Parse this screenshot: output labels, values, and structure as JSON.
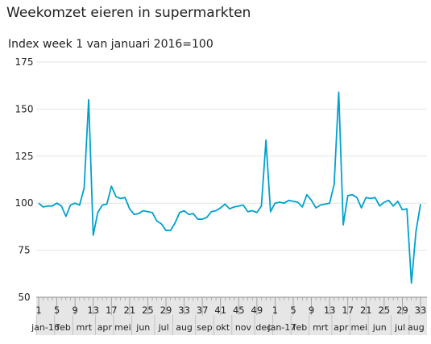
{
  "chart_data": {
    "type": "line",
    "title": "Weekomzet eieren in supermarkten",
    "subtitle": "Index week 1 van januari 2016=100",
    "ylim": [
      50,
      175
    ],
    "yticks": [
      "50",
      "75",
      "100",
      "125",
      "150",
      "175"
    ],
    "week_ticks": [
      "1",
      "5",
      "9",
      "13",
      "17",
      "21",
      "25",
      "29",
      "33",
      "37",
      "41",
      "45",
      "49",
      "1",
      "5",
      "9",
      "13",
      "17",
      "21",
      "25",
      "29",
      "33"
    ],
    "month_labels": [
      "jan-16",
      "feb",
      "mrt",
      "apr",
      "mei",
      "jun",
      "jul",
      "aug",
      "sep",
      "okt",
      "nov",
      "dec",
      "jan-17",
      "feb",
      "mrt",
      "apr",
      "mei",
      "jun",
      "jul",
      "aug"
    ],
    "grid": true,
    "series": [
      {
        "color": "#00a1cd",
        "values": [
          100,
          98,
          98.5,
          98.5,
          100,
          98.5,
          93,
          99,
          100,
          99,
          108,
          155,
          83,
          95,
          99,
          99.5,
          109,
          103.5,
          102.5,
          103,
          97,
          94,
          94.5,
          96,
          95.5,
          95,
          90.5,
          89,
          85.5,
          85.5,
          89.5,
          95,
          96,
          94,
          94.5,
          91.5,
          91.5,
          92.5,
          95.5,
          96,
          97.5,
          99.5,
          97,
          98,
          98.5,
          99,
          95.5,
          96,
          95,
          98.5,
          133.5,
          95.5,
          100,
          100.5,
          100,
          101.5,
          101,
          100.5,
          98,
          104.5,
          101.5,
          97.5,
          99,
          99.5,
          100,
          110,
          159,
          88.5,
          104,
          104.5,
          103,
          97.5,
          103,
          102.5,
          103,
          98.5,
          100.5,
          101.5,
          98.5,
          101,
          96.5,
          97,
          57.5,
          85,
          99.5
        ]
      }
    ]
  }
}
